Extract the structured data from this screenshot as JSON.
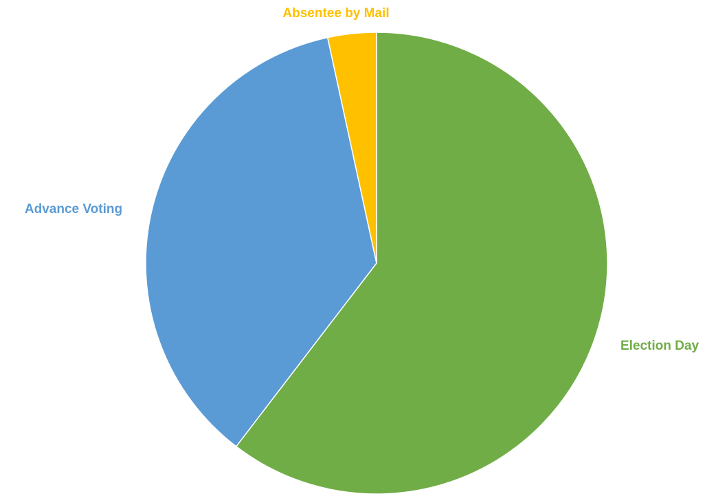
{
  "chart_data": {
    "type": "pie",
    "title": "",
    "start_angle_deg": 0,
    "direction": "clockwise",
    "series": [
      {
        "categories": [
          "Election Day",
          "Advance Voting",
          "Absentee by Mail"
        ],
        "values": [
          60.4,
          36.2,
          3.4
        ],
        "colors": [
          "#70AD47",
          "#5B9BD5",
          "#FFC000"
        ]
      }
    ],
    "labels": [
      {
        "text": "Election Day",
        "color": "#70AD47"
      },
      {
        "text": "Advance Voting",
        "color": "#5B9BD5"
      },
      {
        "text": "Absentee by Mail",
        "color": "#FFC000"
      }
    ],
    "legend": "none"
  }
}
